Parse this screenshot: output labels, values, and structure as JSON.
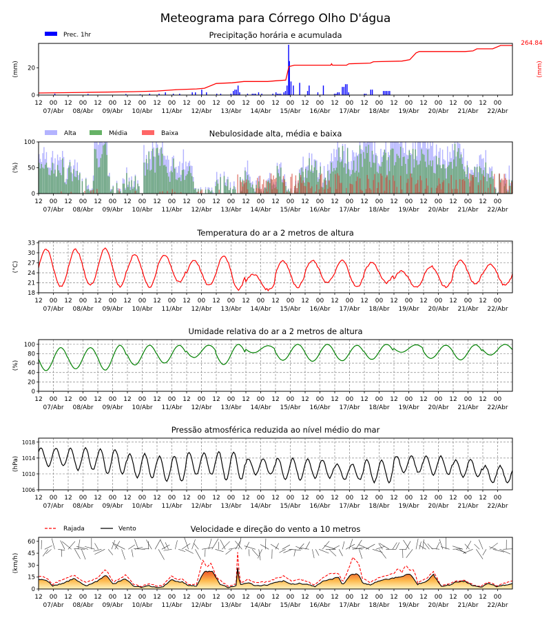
{
  "chart_data": {
    "title": "Meteograma para Córrego Olho D'água",
    "time_axis": {
      "start": "06/Abr 12",
      "end": "22/Abr 12",
      "hours": 384,
      "tick_labels": [
        "12",
        "00",
        "12",
        "00",
        "12",
        "00",
        "12",
        "00",
        "12",
        "00",
        "12",
        "00",
        "12",
        "00",
        "12",
        "00",
        "12",
        "00",
        "12",
        "00",
        "12",
        "00",
        "12",
        "00",
        "12",
        "00",
        "12",
        "00",
        "12",
        "00",
        "12",
        "00"
      ],
      "day_labels": [
        "07/Abr",
        "08/Abr",
        "09/Abr",
        "10/Abr",
        "11/Abr",
        "12/Abr",
        "13/Abr",
        "14/Abr",
        "15/Abr",
        "16/Abr",
        "17/Abr",
        "18/Abr",
        "19/Abr",
        "20/Abr",
        "21/Abr",
        "22/Abr"
      ]
    },
    "panels": [
      {
        "id": "precip",
        "type": "bar",
        "title": "Precipitação horária e acumulada",
        "ylabel": "(mm)",
        "ylabel_right": "(mm)",
        "ylim": [
          0,
          38
        ],
        "yticks": [
          0,
          20
        ],
        "legend": [
          {
            "name": "Prec. 1hr",
            "color": "#0000ff"
          }
        ],
        "accum_label": "264.84",
        "accum_color": "#ff0000",
        "bars": [
          [
            20,
            1
          ],
          [
            62,
            0.8
          ],
          [
            110,
            0.8
          ],
          [
            128,
            0.6
          ],
          [
            140,
            1
          ],
          [
            152,
            1
          ],
          [
            160,
            2
          ],
          [
            170,
            1
          ],
          [
            178,
            1
          ],
          [
            194,
            2
          ],
          [
            198,
            2
          ],
          [
            206,
            4
          ],
          [
            212,
            2
          ],
          [
            225,
            1
          ],
          [
            230,
            1
          ],
          [
            243,
            1
          ],
          [
            246,
            3
          ],
          [
            248,
            4
          ],
          [
            250,
            4
          ],
          [
            252,
            7
          ],
          [
            254,
            2
          ],
          [
            264,
            1
          ],
          [
            270,
            1
          ],
          [
            272,
            1
          ],
          [
            274,
            1
          ],
          [
            278,
            2
          ],
          [
            282,
            1
          ],
          [
            296,
            1
          ],
          [
            300,
            2
          ],
          [
            302,
            1
          ],
          [
            304,
            1
          ],
          [
            306,
            1
          ],
          [
            310,
            2
          ],
          [
            312,
            3
          ],
          [
            314,
            7
          ],
          [
            316,
            37
          ],
          [
            317,
            25
          ],
          [
            319,
            10
          ],
          [
            322,
            7
          ],
          [
            330,
            9
          ],
          [
            340,
            3
          ],
          [
            342,
            7
          ],
          [
            353,
            2
          ],
          [
            360,
            7
          ],
          [
            374,
            1
          ],
          [
            376,
            1
          ],
          [
            378,
            2
          ],
          [
            380,
            2
          ],
          [
            384,
            6
          ],
          [
            386,
            6
          ],
          [
            388,
            8
          ],
          [
            390,
            8
          ],
          [
            392,
            2
          ],
          [
            412,
            1
          ],
          [
            414,
            1
          ],
          [
            420,
            4
          ],
          [
            422,
            4
          ],
          [
            436,
            3
          ],
          [
            438,
            3
          ],
          [
            440,
            3
          ],
          [
            442,
            3
          ],
          [
            444,
            3
          ]
        ],
        "accumulated": [
          [
            0,
            1.5
          ],
          [
            60,
            2
          ],
          [
            120,
            2.5
          ],
          [
            150,
            3
          ],
          [
            175,
            4
          ],
          [
            200,
            4.5
          ],
          [
            210,
            5
          ],
          [
            225,
            8.5
          ],
          [
            245,
            9
          ],
          [
            260,
            10
          ],
          [
            290,
            10
          ],
          [
            300,
            10.5
          ],
          [
            313,
            11
          ],
          [
            317,
            21
          ],
          [
            324,
            22
          ],
          [
            370,
            22
          ],
          [
            371,
            23
          ],
          [
            372,
            22
          ],
          [
            390,
            22
          ],
          [
            393,
            23
          ],
          [
            420,
            23.5
          ],
          [
            424,
            24.5
          ],
          [
            460,
            25
          ],
          [
            470,
            26
          ],
          [
            478,
            31
          ],
          [
            482,
            32
          ],
          [
            540,
            32
          ],
          [
            550,
            32.5
          ],
          [
            555,
            34
          ],
          [
            575,
            34
          ],
          [
            585,
            36.5
          ],
          [
            600,
            36.5
          ]
        ]
      },
      {
        "id": "clouds",
        "type": "bar",
        "title": "Nebulosidade alta, média e baixa",
        "ylabel": "(%)",
        "ylim": [
          0,
          100
        ],
        "yticks": [
          0,
          50,
          100
        ],
        "legend": [
          {
            "name": "Alta",
            "color": "#b3b3ff"
          },
          {
            "name": "Média",
            "color": "#66b266"
          },
          {
            "name": "Baixa",
            "color": "#ff6666"
          }
        ]
      },
      {
        "id": "temp",
        "type": "line",
        "title": "Temperatura do ar a 2 metros de altura",
        "ylabel": "(°C)",
        "ylim": [
          18,
          33.5
        ],
        "yticks": [
          18,
          21,
          24,
          27,
          30,
          33
        ],
        "color": "#ff0000",
        "daily_max": [
          31.2,
          31.0,
          31.3,
          29.5,
          29.4,
          27.8,
          29.2,
          23.6,
          27.7,
          27.6,
          27.7,
          27.1,
          24.6,
          26.0,
          27.6,
          26.7
        ],
        "daily_min": [
          19.8,
          20.3,
          19.9,
          19.8,
          21.1,
          20.2,
          19.0,
          18.9,
          19.7,
          21.0,
          19.7,
          21.0,
          19.7,
          19.7,
          20.6,
          20.2
        ]
      },
      {
        "id": "humidity",
        "type": "line",
        "title": "Umidade relativa do ar a 2 metros de altura",
        "ylabel": "(%)",
        "ylim": [
          0,
          110
        ],
        "yticks": [
          0,
          20,
          40,
          60,
          80,
          100
        ],
        "color": "#008000",
        "daily_max": [
          93,
          93,
          98,
          98,
          98,
          98,
          100,
          97,
          100,
          100,
          98,
          100,
          99,
          98,
          99,
          100
        ],
        "daily_min": [
          44,
          48,
          45,
          56,
          60,
          72,
          57,
          82,
          66,
          64,
          65,
          68,
          83,
          70,
          67,
          77
        ]
      },
      {
        "id": "pressure",
        "type": "line",
        "title": "Pressão atmosférica reduzida ao nível médio do mar",
        "ylabel": "(hPa)",
        "ylim": [
          1006,
          1019
        ],
        "yticks": [
          1006,
          1010,
          1014,
          1018
        ],
        "color": "#000000",
        "daily_max": [
          1016.5,
          1016.5,
          1016.2,
          1015.0,
          1014.5,
          1015.3,
          1015.6,
          1013.8,
          1014.0,
          1013.6,
          1012.5,
          1013.6,
          1014.5,
          1014.5,
          1013.6,
          1012.0
        ],
        "daily_min": [
          1012.0,
          1011.0,
          1010.0,
          1009.0,
          1008.2,
          1009.8,
          1008.5,
          1009.8,
          1008.5,
          1009.0,
          1008.5,
          1007.9,
          1010.3,
          1009.8,
          1009.2,
          1007.8
        ]
      },
      {
        "id": "wind",
        "type": "area",
        "title": "Velocidade e direção do vento a 10 metros",
        "ylabel": "(km/h)",
        "ylim": [
          0,
          65
        ],
        "yticks": [
          0,
          15,
          30,
          45,
          60
        ],
        "legend": [
          {
            "name": "Rajada",
            "color": "#ff0000",
            "style": "dashed"
          },
          {
            "name": "Vento",
            "color": "#000000",
            "style": "solid"
          }
        ],
        "wind": [
          [
            0,
            12
          ],
          [
            10,
            11
          ],
          [
            18,
            4
          ],
          [
            30,
            7
          ],
          [
            45,
            13
          ],
          [
            60,
            4
          ],
          [
            75,
            10
          ],
          [
            85,
            18
          ],
          [
            95,
            6
          ],
          [
            105,
            11
          ],
          [
            110,
            13
          ],
          [
            120,
            4
          ],
          [
            130,
            2
          ],
          [
            140,
            4
          ],
          [
            150,
            2
          ],
          [
            158,
            3
          ],
          [
            168,
            12
          ],
          [
            175,
            9
          ],
          [
            182,
            9
          ],
          [
            190,
            4
          ],
          [
            200,
            4
          ],
          [
            210,
            22
          ],
          [
            220,
            22
          ],
          [
            230,
            6
          ],
          [
            240,
            2
          ],
          [
            250,
            4
          ],
          [
            252,
            27
          ],
          [
            255,
            5
          ],
          [
            265,
            8
          ],
          [
            275,
            4
          ],
          [
            290,
            5
          ],
          [
            300,
            8
          ],
          [
            310,
            10
          ],
          [
            320,
            6
          ],
          [
            330,
            7
          ],
          [
            340,
            6
          ],
          [
            350,
            3
          ],
          [
            360,
            10
          ],
          [
            370,
            12
          ],
          [
            380,
            15
          ],
          [
            385,
            5
          ],
          [
            395,
            18
          ],
          [
            405,
            19
          ],
          [
            410,
            8
          ],
          [
            420,
            5
          ],
          [
            430,
            10
          ],
          [
            440,
            12
          ],
          [
            450,
            14
          ],
          [
            460,
            16
          ],
          [
            470,
            19
          ],
          [
            475,
            13
          ],
          [
            480,
            6
          ],
          [
            492,
            10
          ],
          [
            500,
            18
          ],
          [
            510,
            3
          ],
          [
            520,
            5
          ],
          [
            530,
            9
          ],
          [
            540,
            10
          ],
          [
            550,
            4
          ],
          [
            560,
            2
          ],
          [
            570,
            7
          ],
          [
            580,
            3
          ],
          [
            590,
            5
          ],
          [
            600,
            7
          ]
        ],
        "gust": [
          [
            0,
            16
          ],
          [
            10,
            14
          ],
          [
            18,
            6
          ],
          [
            30,
            12
          ],
          [
            45,
            17
          ],
          [
            60,
            8
          ],
          [
            75,
            14
          ],
          [
            85,
            25
          ],
          [
            95,
            9
          ],
          [
            105,
            14
          ],
          [
            110,
            18
          ],
          [
            120,
            6
          ],
          [
            130,
            3
          ],
          [
            140,
            7
          ],
          [
            150,
            3
          ],
          [
            158,
            5
          ],
          [
            168,
            17
          ],
          [
            175,
            12
          ],
          [
            182,
            13
          ],
          [
            190,
            6
          ],
          [
            200,
            6
          ],
          [
            208,
            36
          ],
          [
            213,
            27
          ],
          [
            218,
            33
          ],
          [
            225,
            15
          ],
          [
            235,
            7
          ],
          [
            240,
            3
          ],
          [
            250,
            6
          ],
          [
            252,
            46
          ],
          [
            255,
            7
          ],
          [
            265,
            12
          ],
          [
            275,
            8
          ],
          [
            290,
            9
          ],
          [
            300,
            13
          ],
          [
            310,
            16
          ],
          [
            320,
            10
          ],
          [
            330,
            12
          ],
          [
            340,
            10
          ],
          [
            350,
            5
          ],
          [
            360,
            14
          ],
          [
            370,
            20
          ],
          [
            380,
            19
          ],
          [
            385,
            8
          ],
          [
            392,
            24
          ],
          [
            398,
            40
          ],
          [
            405,
            33
          ],
          [
            410,
            14
          ],
          [
            420,
            8
          ],
          [
            430,
            14
          ],
          [
            440,
            17
          ],
          [
            450,
            20
          ],
          [
            455,
            26
          ],
          [
            460,
            21
          ],
          [
            465,
            30
          ],
          [
            470,
            23
          ],
          [
            475,
            25
          ],
          [
            480,
            8
          ],
          [
            492,
            14
          ],
          [
            500,
            22
          ],
          [
            510,
            4
          ],
          [
            520,
            7
          ],
          [
            530,
            10
          ],
          [
            540,
            11
          ],
          [
            550,
            5
          ],
          [
            560,
            3
          ],
          [
            570,
            9
          ],
          [
            580,
            4
          ],
          [
            590,
            7
          ],
          [
            600,
            10
          ]
        ]
      }
    ]
  }
}
